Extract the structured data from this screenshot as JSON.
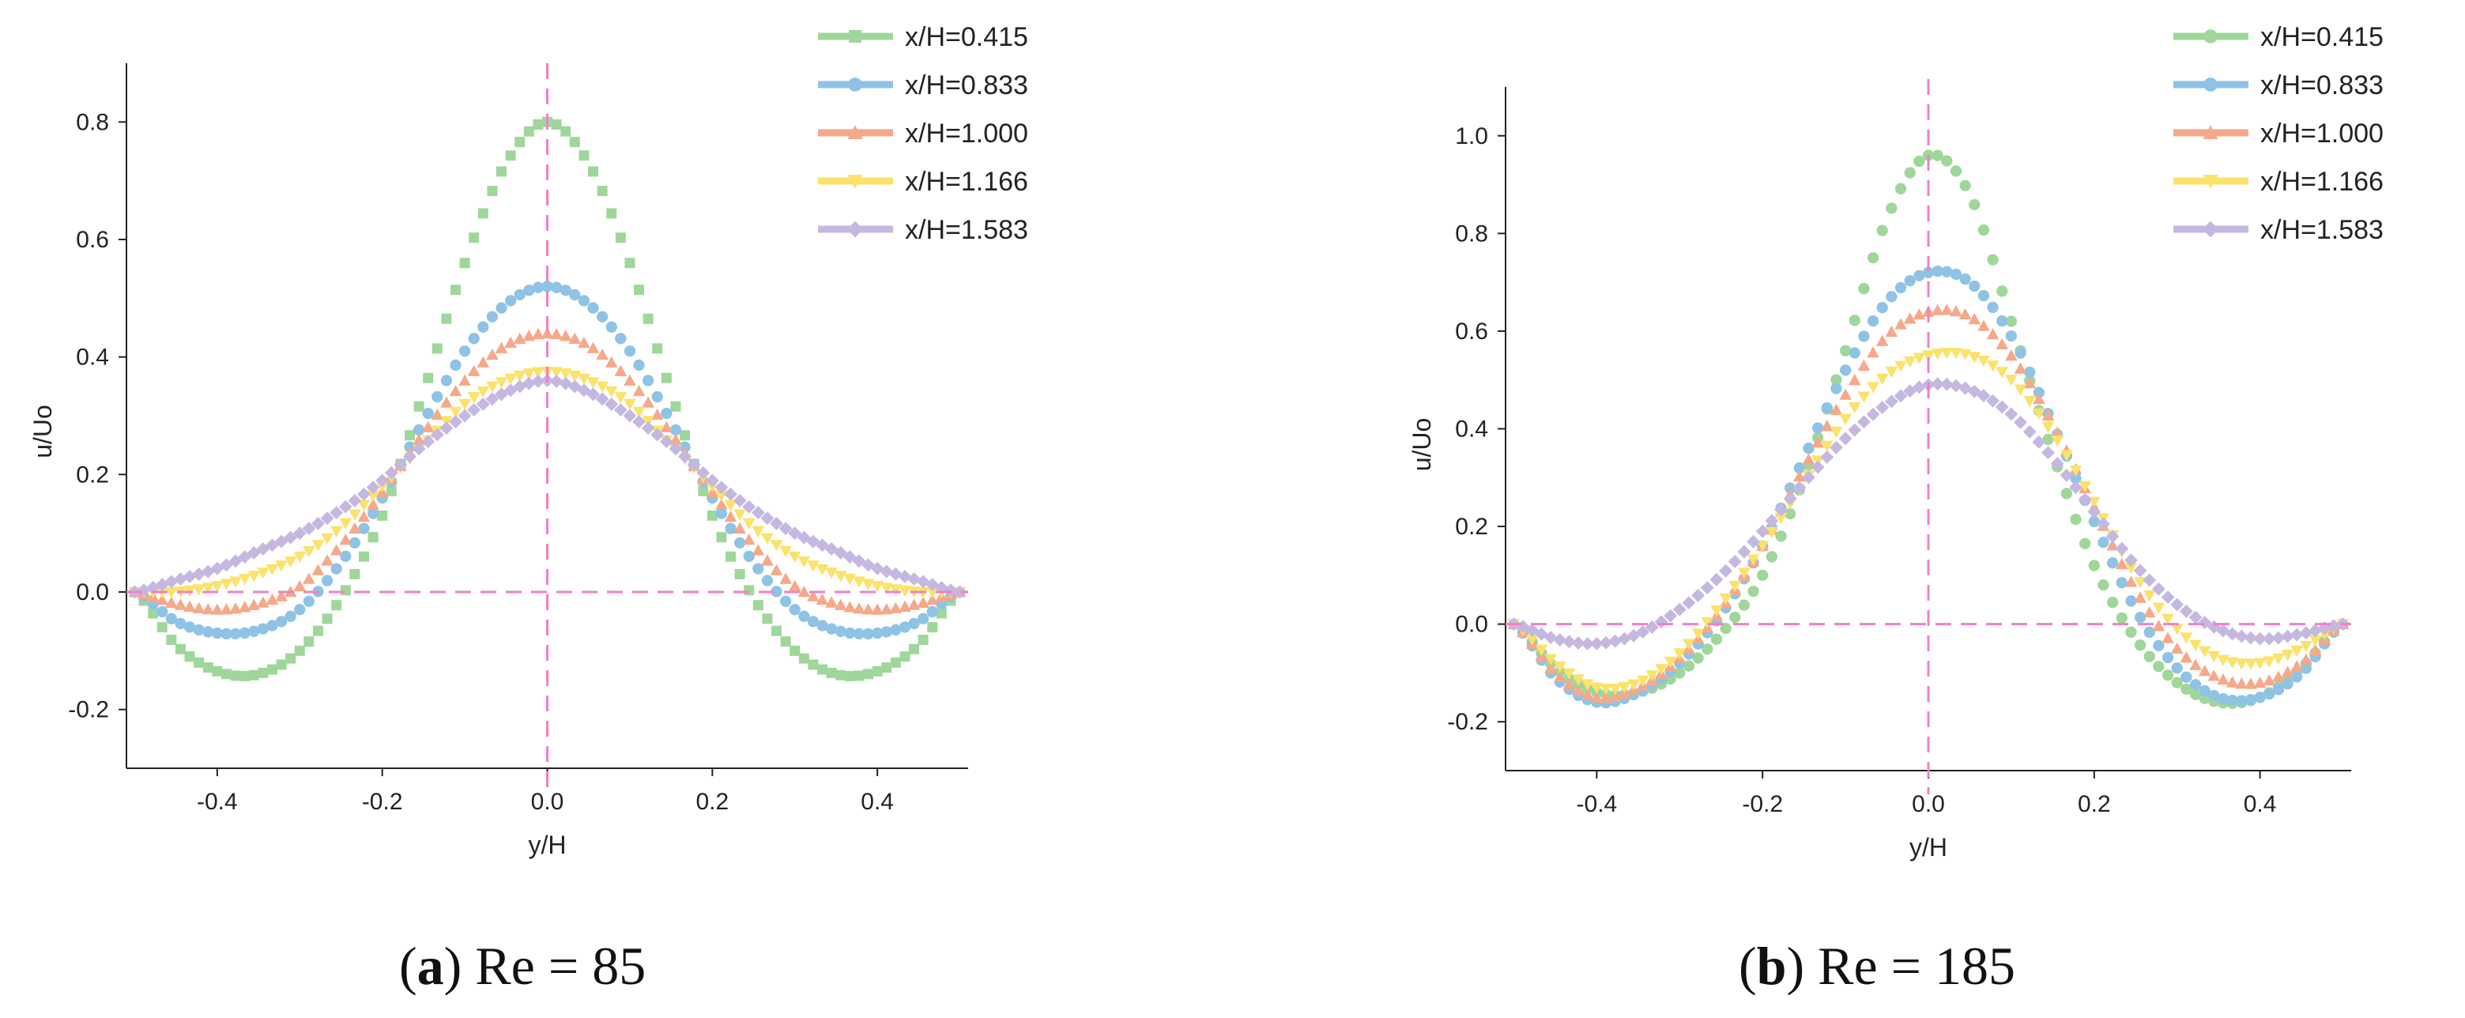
{
  "chart_data": [
    {
      "type": "line",
      "panel": "a",
      "caption": {
        "open": "(",
        "letter": "a",
        "rest": ") Re = 85"
      },
      "xlabel": "y/H",
      "ylabel": "u/Uo",
      "xlim": [
        -0.51,
        0.51
      ],
      "ylim": [
        -0.3,
        0.9
      ],
      "xticks": [
        "-0.4",
        "-0.2",
        "0.0",
        "0.2",
        "0.4"
      ],
      "xtick_values": [
        -0.4,
        -0.2,
        0.0,
        0.2,
        0.4
      ],
      "yticks": [
        "-0.2",
        "0.0",
        "0.2",
        "0.4",
        "0.6",
        "0.8"
      ],
      "ytick_values": [
        -0.2,
        0.0,
        0.2,
        0.4,
        0.6,
        0.8
      ],
      "x": [
        -0.5,
        -0.45,
        -0.4,
        -0.35,
        -0.3,
        -0.25,
        -0.2,
        -0.15,
        -0.1,
        -0.05,
        0.0,
        0.05,
        0.1,
        0.15,
        0.2,
        0.25,
        0.3,
        0.35,
        0.4,
        0.45,
        0.5
      ],
      "series": [
        {
          "name": "x/H=0.415",
          "marker": "square",
          "color": "#9fd79a",
          "values": [
            0.0,
            -0.09,
            -0.135,
            -0.14,
            -0.1,
            -0.01,
            0.13,
            0.34,
            0.56,
            0.73,
            0.8,
            0.73,
            0.56,
            0.34,
            0.13,
            -0.01,
            -0.1,
            -0.14,
            -0.135,
            -0.09,
            0.0
          ]
        },
        {
          "name": "x/H=0.833",
          "marker": "circle",
          "color": "#8fc3e6",
          "values": [
            0.0,
            -0.05,
            -0.07,
            -0.065,
            -0.03,
            0.05,
            0.16,
            0.29,
            0.41,
            0.49,
            0.52,
            0.49,
            0.41,
            0.29,
            0.16,
            0.05,
            -0.03,
            -0.065,
            -0.07,
            -0.05,
            0.0
          ]
        },
        {
          "name": "x/H=1.000",
          "marker": "triangle-up",
          "color": "#f5a88a",
          "values": [
            0.0,
            -0.02,
            -0.03,
            -0.02,
            0.01,
            0.08,
            0.17,
            0.27,
            0.36,
            0.42,
            0.44,
            0.42,
            0.36,
            0.27,
            0.17,
            0.08,
            0.01,
            -0.02,
            -0.03,
            -0.02,
            0.0
          ]
        },
        {
          "name": "x/H=1.166",
          "marker": "triangle-down",
          "color": "#fbe26a",
          "values": [
            0.0,
            0.0,
            0.01,
            0.03,
            0.06,
            0.11,
            0.18,
            0.25,
            0.32,
            0.36,
            0.375,
            0.36,
            0.32,
            0.25,
            0.18,
            0.11,
            0.06,
            0.03,
            0.01,
            0.0,
            0.0
          ]
        },
        {
          "name": "x/H=1.583",
          "marker": "diamond",
          "color": "#c5b8e0",
          "values": [
            0.0,
            0.02,
            0.04,
            0.07,
            0.1,
            0.14,
            0.19,
            0.25,
            0.3,
            0.34,
            0.36,
            0.34,
            0.3,
            0.25,
            0.19,
            0.14,
            0.1,
            0.07,
            0.04,
            0.02,
            0.0
          ]
        }
      ]
    },
    {
      "type": "line",
      "panel": "b",
      "caption": {
        "open": "(",
        "letter": "b",
        "rest": ") Re = 185"
      },
      "xlabel": "y/H",
      "ylabel": "u/Uo",
      "xlim": [
        -0.51,
        0.51
      ],
      "ylim": [
        -0.3,
        1.1
      ],
      "xticks": [
        "-0.4",
        "-0.2",
        "0.0",
        "0.2",
        "0.4"
      ],
      "xtick_values": [
        -0.4,
        -0.2,
        0.0,
        0.2,
        0.4
      ],
      "yticks": [
        "-0.2",
        "0.0",
        "0.2",
        "0.4",
        "0.6",
        "0.8",
        "1.0"
      ],
      "ytick_values": [
        -0.2,
        0.0,
        0.2,
        0.4,
        0.6,
        0.8,
        1.0
      ],
      "x": [
        -0.5,
        -0.45,
        -0.4,
        -0.35,
        -0.3,
        -0.25,
        -0.2,
        -0.15,
        -0.1,
        -0.05,
        0.0,
        0.05,
        0.1,
        0.15,
        0.2,
        0.25,
        0.3,
        0.35,
        0.4,
        0.45,
        0.5
      ],
      "series": [
        {
          "name": "x/H=0.415",
          "marker": "circle",
          "color": "#9fd79a",
          "values": [
            0.0,
            -0.09,
            -0.14,
            -0.14,
            -0.1,
            -0.02,
            0.1,
            0.3,
            0.56,
            0.83,
            0.96,
            0.88,
            0.62,
            0.35,
            0.12,
            -0.03,
            -0.12,
            -0.16,
            -0.15,
            -0.09,
            0.0
          ]
        },
        {
          "name": "x/H=0.833",
          "marker": "circle",
          "color": "#8fc3e6",
          "values": [
            0.0,
            -0.11,
            -0.16,
            -0.14,
            -0.08,
            0.02,
            0.16,
            0.34,
            0.52,
            0.66,
            0.72,
            0.7,
            0.59,
            0.41,
            0.21,
            0.03,
            -0.09,
            -0.15,
            -0.15,
            -0.1,
            0.0
          ]
        },
        {
          "name": "x/H=1.000",
          "marker": "triangle-up",
          "color": "#f5a88a",
          "values": [
            0.0,
            -0.1,
            -0.15,
            -0.13,
            -0.07,
            0.03,
            0.16,
            0.32,
            0.47,
            0.59,
            0.64,
            0.63,
            0.55,
            0.41,
            0.24,
            0.07,
            -0.05,
            -0.11,
            -0.12,
            -0.08,
            0.0
          ]
        },
        {
          "name": "x/H=1.166",
          "marker": "triangle-down",
          "color": "#fbe26a",
          "values": [
            0.0,
            -0.08,
            -0.13,
            -0.12,
            -0.06,
            0.04,
            0.16,
            0.29,
            0.42,
            0.51,
            0.55,
            0.55,
            0.5,
            0.39,
            0.25,
            0.1,
            -0.01,
            -0.07,
            -0.08,
            -0.05,
            0.0
          ]
        },
        {
          "name": "x/H=1.583",
          "marker": "diamond",
          "color": "#c5b8e0",
          "values": [
            0.0,
            -0.03,
            -0.04,
            -0.02,
            0.03,
            0.1,
            0.19,
            0.29,
            0.38,
            0.45,
            0.49,
            0.48,
            0.43,
            0.34,
            0.23,
            0.12,
            0.04,
            -0.01,
            -0.03,
            -0.02,
            0.0
          ]
        }
      ]
    }
  ],
  "reference_line_color": "#f27fc8"
}
